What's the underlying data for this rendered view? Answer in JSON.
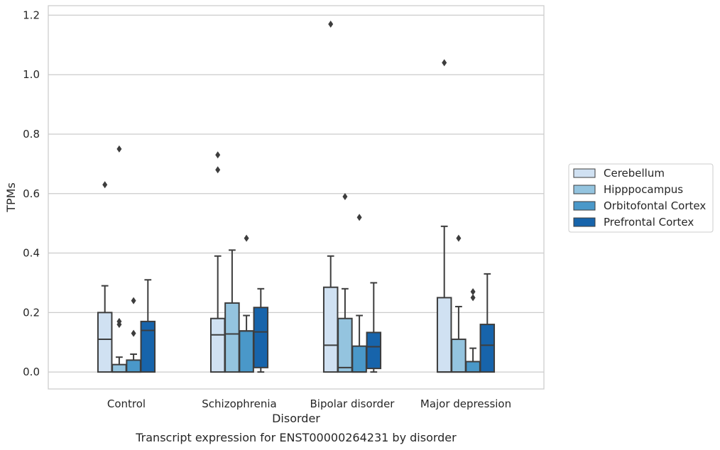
{
  "chart_data": {
    "type": "box",
    "title": "",
    "caption": "Transcript expression for ENST00000264231 by disorder",
    "xlabel": "Disorder",
    "ylabel": "TPMs",
    "ylim": [
      -0.057,
      1.232
    ],
    "yticks": [
      "0.0",
      "0.2",
      "0.4",
      "0.6",
      "0.8",
      "1.0",
      "1.2"
    ],
    "grid": "horizontal",
    "legend_position": "right",
    "categories": [
      "Control",
      "Schizophrenia",
      "Bipolar disorder",
      "Major depression"
    ],
    "series": [
      {
        "name": "Cerebellum",
        "color": "#d0e1f2",
        "boxes": [
          {
            "q1": 0.0,
            "median": 0.11,
            "q3": 0.2,
            "whisker_low": 0.0,
            "whisker_high": 0.29,
            "outliers": [
              0.63
            ]
          },
          {
            "q1": 0.0,
            "median": 0.125,
            "q3": 0.18,
            "whisker_low": 0.0,
            "whisker_high": 0.39,
            "outliers": [
              0.68,
              0.73
            ]
          },
          {
            "q1": 0.0,
            "median": 0.09,
            "q3": 0.285,
            "whisker_low": 0.0,
            "whisker_high": 0.39,
            "outliers": [
              1.17
            ]
          },
          {
            "q1": 0.0,
            "median": 0.0,
            "q3": 0.25,
            "whisker_low": 0.0,
            "whisker_high": 0.49,
            "outliers": [
              1.04
            ]
          }
        ]
      },
      {
        "name": "Hipppocampus",
        "color": "#94c4df",
        "boxes": [
          {
            "q1": 0.0,
            "median": 0.0,
            "q3": 0.025,
            "whisker_low": 0.0,
            "whisker_high": 0.05,
            "outliers": [
              0.16,
              0.17,
              0.75
            ]
          },
          {
            "q1": 0.0,
            "median": 0.128,
            "q3": 0.232,
            "whisker_low": 0.0,
            "whisker_high": 0.41,
            "outliers": []
          },
          {
            "q1": 0.0,
            "median": 0.015,
            "q3": 0.18,
            "whisker_low": 0.0,
            "whisker_high": 0.28,
            "outliers": [
              0.59
            ]
          },
          {
            "q1": 0.0,
            "median": 0.0,
            "q3": 0.11,
            "whisker_low": 0.0,
            "whisker_high": 0.22,
            "outliers": [
              0.45
            ]
          }
        ]
      },
      {
        "name": "Orbitofontal Cortex",
        "color": "#4a98c9",
        "boxes": [
          {
            "q1": 0.0,
            "median": 0.0,
            "q3": 0.04,
            "whisker_low": 0.0,
            "whisker_high": 0.06,
            "outliers": [
              0.13,
              0.24
            ]
          },
          {
            "q1": 0.0,
            "median": 0.138,
            "q3": 0.138,
            "whisker_low": 0.0,
            "whisker_high": 0.19,
            "outliers": [
              0.45
            ]
          },
          {
            "q1": 0.0,
            "median": 0.0,
            "q3": 0.087,
            "whisker_low": 0.0,
            "whisker_high": 0.19,
            "outliers": [
              0.52
            ]
          },
          {
            "q1": 0.0,
            "median": 0.0,
            "q3": 0.035,
            "whisker_low": 0.0,
            "whisker_high": 0.08,
            "outliers": [
              0.25,
              0.27
            ]
          }
        ]
      },
      {
        "name": "Prefrontal Cortex",
        "color": "#1764ab",
        "boxes": [
          {
            "q1": 0.0,
            "median": 0.14,
            "q3": 0.17,
            "whisker_low": 0.0,
            "whisker_high": 0.31,
            "outliers": []
          },
          {
            "q1": 0.015,
            "median": 0.135,
            "q3": 0.217,
            "whisker_low": 0.0,
            "whisker_high": 0.28,
            "outliers": []
          },
          {
            "q1": 0.012,
            "median": 0.085,
            "q3": 0.133,
            "whisker_low": 0.0,
            "whisker_high": 0.3,
            "outliers": []
          },
          {
            "q1": 0.0,
            "median": 0.09,
            "q3": 0.16,
            "whisker_low": 0.0,
            "whisker_high": 0.33,
            "outliers": []
          }
        ]
      }
    ]
  }
}
